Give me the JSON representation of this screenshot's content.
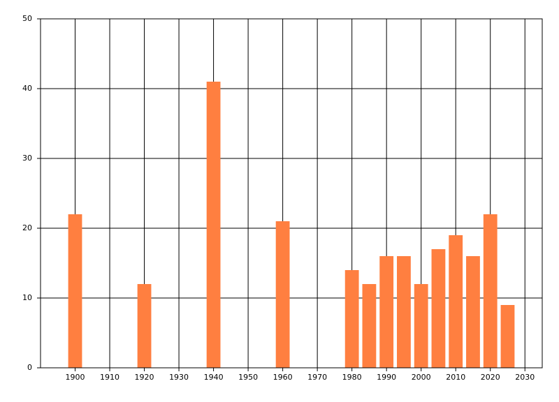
{
  "chart_data": {
    "type": "bar",
    "x": [
      1900,
      1920,
      1940,
      1960,
      1980,
      1985,
      1990,
      1995,
      2000,
      2005,
      2010,
      2015,
      2020,
      2025
    ],
    "values": [
      22,
      12,
      41,
      21,
      14,
      12,
      16,
      16,
      12,
      17,
      19,
      16,
      22,
      9
    ],
    "color": "#ff7f40",
    "xlim": [
      1890,
      2035
    ],
    "xticks": [
      1900,
      1910,
      1920,
      1930,
      1940,
      1950,
      1960,
      1970,
      1980,
      1990,
      2000,
      2010,
      2020,
      2030
    ],
    "ylim": [
      0,
      50
    ],
    "yticks": [
      0,
      10,
      20,
      30,
      40,
      50
    ],
    "grid": true
  }
}
